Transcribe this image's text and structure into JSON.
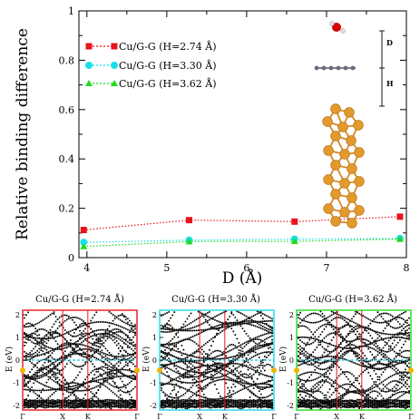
{
  "chart_data": [
    {
      "type": "line",
      "xlabel": "D (Å)",
      "ylabel": "Relative binding difference",
      "xlim": [
        3.9,
        8.0
      ],
      "ylim": [
        0,
        1
      ],
      "xticks": [
        "4",
        "5",
        "6",
        "7",
        "8"
      ],
      "yticks": [
        "0",
        "0.2",
        "0.4",
        "0.6",
        "0.8",
        "1"
      ],
      "legend_position": "upper-left",
      "series": [
        {
          "name": "Cu/G-G (H=2.74 Å)",
          "color": "#e8141c",
          "marker": "square",
          "x": [
            3.96,
            5.28,
            6.6,
            7.92
          ],
          "y": [
            0.112,
            0.152,
            0.146,
            0.166
          ]
        },
        {
          "name": "Cu/G-G (H=3.30 Å)",
          "color": "#19e0e8",
          "marker": "circle",
          "x": [
            3.96,
            5.28,
            6.6,
            7.92
          ],
          "y": [
            0.062,
            0.071,
            0.075,
            0.078
          ]
        },
        {
          "name": "Cu/G-G (H=3.62 Å)",
          "color": "#1fdb1a",
          "marker": "triangle",
          "x": [
            3.96,
            5.28,
            6.6,
            7.92
          ],
          "y": [
            0.045,
            0.065,
            0.066,
            0.075
          ]
        }
      ],
      "inset_labels": {
        "d": "D",
        "h": "H"
      }
    },
    {
      "type": "scatter",
      "title": "Cu/G-G (H=2.74 Å)",
      "frame_color": "#e8141c",
      "ylabel": "E (eV)",
      "yticks": [
        "2",
        "1",
        "0",
        "-1",
        "-2"
      ],
      "xticks": [
        "Γ",
        "X",
        "K",
        "Γ"
      ]
    },
    {
      "type": "scatter",
      "title": "Cu/G-G (H=3.30 Å)",
      "frame_color": "#19d8e8",
      "ylabel": "E (eV)",
      "yticks": [
        "2",
        "1",
        "0",
        "-1",
        "-2"
      ],
      "xticks": [
        "Γ",
        "X",
        "K",
        "Γ"
      ]
    },
    {
      "type": "scatter",
      "title": "Cu/G-G (H=3.62 Å)",
      "frame_color": "#22dd1e",
      "ylabel": "E (eV)",
      "yticks": [
        "2",
        "1",
        "0",
        "-1",
        "-2"
      ],
      "xticks": [
        "Γ",
        "X",
        "K",
        "Γ"
      ]
    }
  ]
}
